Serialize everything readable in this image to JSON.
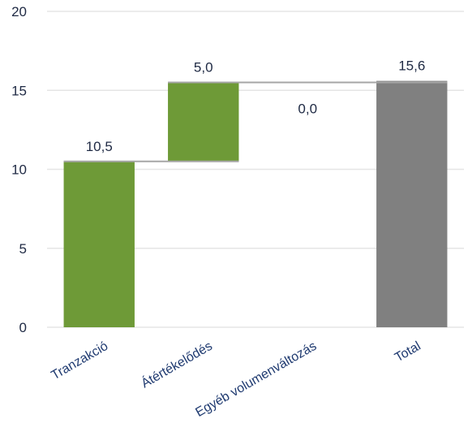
{
  "chart_data": {
    "type": "waterfall",
    "title": "",
    "xlabel": "",
    "ylabel": "",
    "ylim": [
      0,
      20
    ],
    "yticks": [
      0,
      5,
      10,
      15,
      20
    ],
    "grid": true,
    "legend": "none",
    "categories": [
      "Tranzakció",
      "Átértékelődés",
      "Egyéb volumenváltozás",
      "Total"
    ],
    "values": [
      10.5,
      5.0,
      0.0,
      15.6
    ],
    "labels": [
      "10,5",
      "5,0",
      "0,0",
      "15,6"
    ],
    "kinds": [
      "increase",
      "increase",
      "increase",
      "total"
    ],
    "colors": {
      "increase": "#6e9a37",
      "total": "#808080",
      "connector": "#a6a6a6",
      "gridline": "#e5e5e5",
      "text": "#1f2a44"
    }
  }
}
